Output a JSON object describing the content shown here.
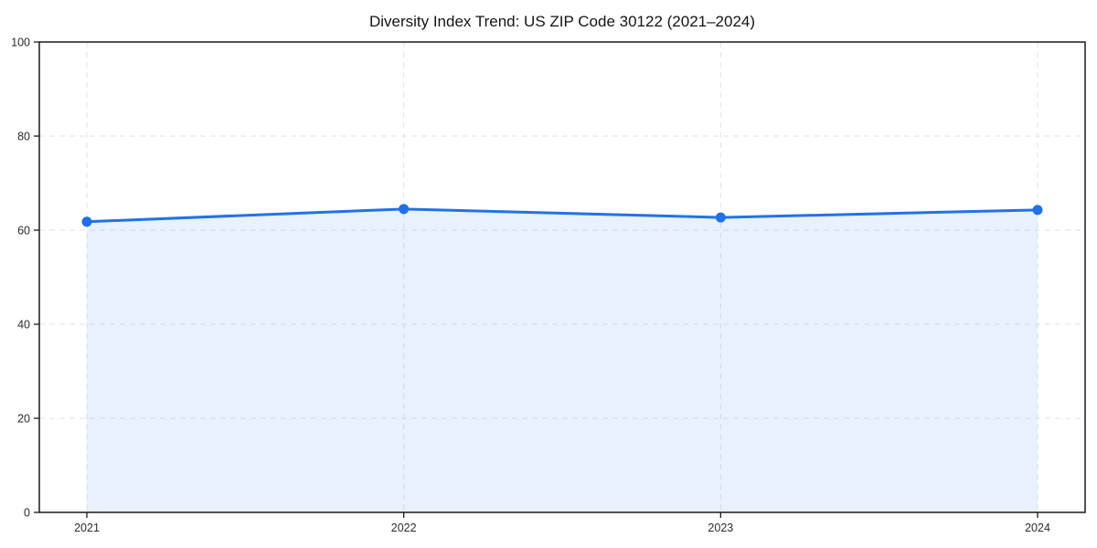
{
  "chart_data": {
    "type": "area",
    "title": "Diversity Index Trend: US ZIP Code 30122 (2021–2024)",
    "x": [
      "2021",
      "2022",
      "2023",
      "2024"
    ],
    "series": [
      {
        "name": "Diversity Index",
        "values": [
          61.8,
          64.5,
          62.7,
          64.3
        ]
      }
    ],
    "xlabel": "",
    "ylabel": "",
    "ylim": [
      0,
      100
    ],
    "yticks": [
      0,
      20,
      40,
      60,
      80,
      100
    ],
    "grid": "dashed, horizontal and vertical",
    "legend_position": "none",
    "colors": {
      "line": "#2272e8",
      "marker": "#2170e6",
      "fill": "#2272e8",
      "fill_opacity": 0.1,
      "grid": "#e2e2e2",
      "axis": "#1a1a1a",
      "tick_label": "#2b2b2b",
      "background": "#ffffff"
    }
  }
}
